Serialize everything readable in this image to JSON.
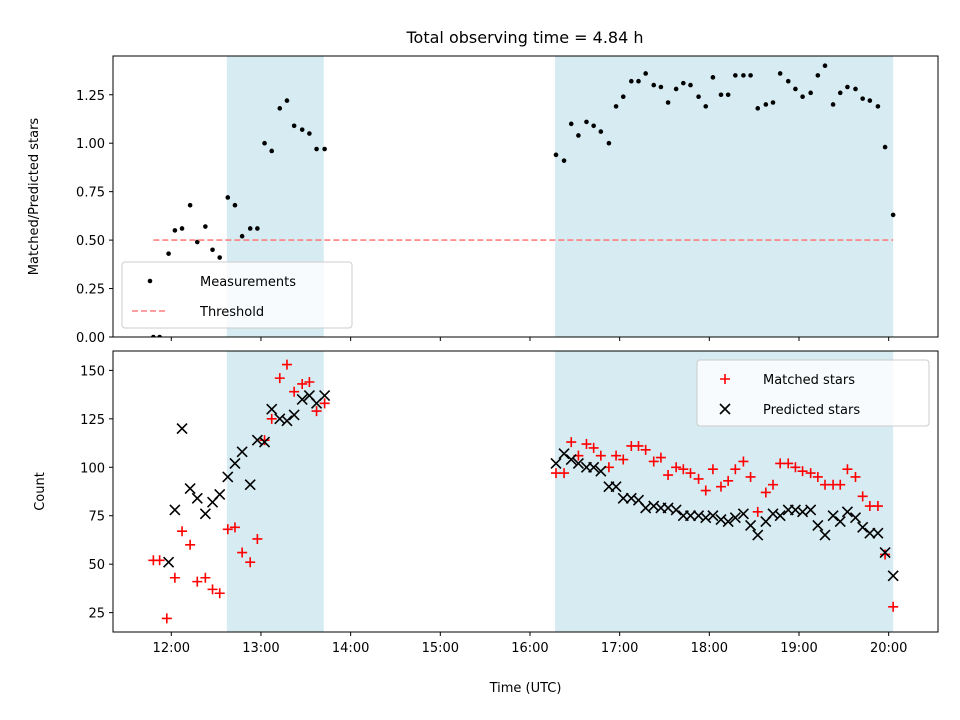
{
  "figure_title": "Total observing time = 4.84 h",
  "chart_data": [
    {
      "type": "scatter",
      "panel": "top",
      "ylabel": "Matched/Predicted stars",
      "xlabel": "",
      "xlim": [
        11.35,
        20.55
      ],
      "ylim": [
        0,
        1.45
      ],
      "xticks": [
        12,
        13,
        14,
        15,
        16,
        17,
        18,
        19,
        20
      ],
      "xtick_labels": [],
      "yticks": [
        0.0,
        0.25,
        0.5,
        0.75,
        1.0,
        1.25
      ],
      "ytick_labels": [
        "0.00",
        "0.25",
        "0.50",
        "0.75",
        "1.00",
        "1.25"
      ],
      "grid": false,
      "legend_position": "lower-left",
      "shaded_regions": [
        [
          12.62,
          13.7
        ],
        [
          16.28,
          20.05
        ]
      ],
      "series": [
        {
          "name": "Measurements",
          "marker": "dot",
          "color": "#000000",
          "points": [
            [
              11.8,
              0.0
            ],
            [
              11.87,
              0.0
            ],
            [
              11.97,
              0.43
            ],
            [
              12.04,
              0.55
            ],
            [
              12.12,
              0.56
            ],
            [
              12.21,
              0.68
            ],
            [
              12.29,
              0.49
            ],
            [
              12.38,
              0.57
            ],
            [
              12.46,
              0.45
            ],
            [
              12.54,
              0.41
            ],
            [
              12.63,
              0.72
            ],
            [
              12.71,
              0.68
            ],
            [
              12.79,
              0.52
            ],
            [
              12.88,
              0.56
            ],
            [
              12.96,
              0.56
            ],
            [
              13.04,
              1.0
            ],
            [
              13.12,
              0.96
            ],
            [
              13.21,
              1.18
            ],
            [
              13.29,
              1.22
            ],
            [
              13.37,
              1.09
            ],
            [
              13.46,
              1.07
            ],
            [
              13.54,
              1.05
            ],
            [
              13.62,
              0.97
            ],
            [
              13.71,
              0.97
            ],
            [
              16.29,
              0.94
            ],
            [
              16.38,
              0.91
            ],
            [
              16.46,
              1.1
            ],
            [
              16.54,
              1.04
            ],
            [
              16.63,
              1.11
            ],
            [
              16.71,
              1.09
            ],
            [
              16.79,
              1.06
            ],
            [
              16.88,
              1.0
            ],
            [
              16.96,
              1.19
            ],
            [
              17.04,
              1.24
            ],
            [
              17.13,
              1.32
            ],
            [
              17.21,
              1.32
            ],
            [
              17.29,
              1.36
            ],
            [
              17.38,
              1.3
            ],
            [
              17.46,
              1.29
            ],
            [
              17.54,
              1.21
            ],
            [
              17.63,
              1.28
            ],
            [
              17.71,
              1.31
            ],
            [
              17.79,
              1.3
            ],
            [
              17.88,
              1.24
            ],
            [
              17.96,
              1.19
            ],
            [
              18.04,
              1.34
            ],
            [
              18.13,
              1.25
            ],
            [
              18.21,
              1.25
            ],
            [
              18.29,
              1.35
            ],
            [
              18.38,
              1.35
            ],
            [
              18.46,
              1.35
            ],
            [
              18.54,
              1.18
            ],
            [
              18.63,
              1.2
            ],
            [
              18.71,
              1.21
            ],
            [
              18.79,
              1.36
            ],
            [
              18.88,
              1.32
            ],
            [
              18.96,
              1.28
            ],
            [
              19.04,
              1.24
            ],
            [
              19.13,
              1.26
            ],
            [
              19.21,
              1.35
            ],
            [
              19.29,
              1.4
            ],
            [
              19.38,
              1.2
            ],
            [
              19.46,
              1.26
            ],
            [
              19.54,
              1.29
            ],
            [
              19.63,
              1.28
            ],
            [
              19.71,
              1.23
            ],
            [
              19.79,
              1.22
            ],
            [
              19.88,
              1.19
            ],
            [
              19.96,
              0.98
            ],
            [
              20.05,
              0.63
            ]
          ]
        },
        {
          "name": "Threshold",
          "line": "dashed",
          "color": "#ff7f7f",
          "x": [
            11.8,
            20.05
          ],
          "values": [
            0.5,
            0.5
          ]
        }
      ]
    },
    {
      "type": "scatter",
      "panel": "bottom",
      "ylabel": "Count",
      "xlabel": "Time (UTC)",
      "xlim": [
        11.35,
        20.55
      ],
      "ylim": [
        15,
        160
      ],
      "xticks": [
        12,
        13,
        14,
        15,
        16,
        17,
        18,
        19,
        20
      ],
      "xtick_labels": [
        "12:00",
        "13:00",
        "14:00",
        "15:00",
        "16:00",
        "17:00",
        "18:00",
        "19:00",
        "20:00"
      ],
      "yticks": [
        25,
        50,
        75,
        100,
        125,
        150
      ],
      "ytick_labels": [
        "25",
        "50",
        "75",
        "100",
        "125",
        "150"
      ],
      "grid": false,
      "legend_position": "upper-right",
      "shaded_regions": [
        [
          12.62,
          13.7
        ],
        [
          16.28,
          20.05
        ]
      ],
      "series": [
        {
          "name": "Matched stars",
          "marker": "plus",
          "color": "#ff0000",
          "points": [
            [
              11.8,
              52
            ],
            [
              11.87,
              52
            ],
            [
              11.95,
              22
            ],
            [
              12.04,
              43
            ],
            [
              12.12,
              67
            ],
            [
              12.21,
              60
            ],
            [
              12.29,
              41
            ],
            [
              12.38,
              43
            ],
            [
              12.46,
              37
            ],
            [
              12.54,
              35
            ],
            [
              12.63,
              68
            ],
            [
              12.71,
              69
            ],
            [
              12.79,
              56
            ],
            [
              12.88,
              51
            ],
            [
              12.96,
              63
            ],
            [
              13.04,
              114
            ],
            [
              13.12,
              125
            ],
            [
              13.21,
              146
            ],
            [
              13.29,
              153
            ],
            [
              13.37,
              139
            ],
            [
              13.46,
              143
            ],
            [
              13.54,
              144
            ],
            [
              13.62,
              129
            ],
            [
              13.71,
              133
            ],
            [
              16.29,
              97
            ],
            [
              16.38,
              97
            ],
            [
              16.46,
              113
            ],
            [
              16.54,
              106
            ],
            [
              16.63,
              112
            ],
            [
              16.71,
              110
            ],
            [
              16.79,
              106
            ],
            [
              16.88,
              100
            ],
            [
              16.96,
              106
            ],
            [
              17.04,
              104
            ],
            [
              17.13,
              111
            ],
            [
              17.21,
              111
            ],
            [
              17.29,
              109
            ],
            [
              17.38,
              103
            ],
            [
              17.46,
              105
            ],
            [
              17.54,
              96
            ],
            [
              17.63,
              100
            ],
            [
              17.71,
              99
            ],
            [
              17.79,
              97
            ],
            [
              17.88,
              94
            ],
            [
              17.96,
              88
            ],
            [
              18.04,
              99
            ],
            [
              18.13,
              90
            ],
            [
              18.21,
              93
            ],
            [
              18.29,
              99
            ],
            [
              18.38,
              103
            ],
            [
              18.46,
              95
            ],
            [
              18.54,
              77
            ],
            [
              18.63,
              87
            ],
            [
              18.71,
              91
            ],
            [
              18.79,
              102
            ],
            [
              18.88,
              102
            ],
            [
              18.96,
              100
            ],
            [
              19.04,
              98
            ],
            [
              19.13,
              97
            ],
            [
              19.21,
              95
            ],
            [
              19.29,
              91
            ],
            [
              19.38,
              91
            ],
            [
              19.46,
              91
            ],
            [
              19.54,
              99
            ],
            [
              19.63,
              95
            ],
            [
              19.71,
              85
            ],
            [
              19.79,
              80
            ],
            [
              19.88,
              80
            ],
            [
              19.96,
              55
            ],
            [
              20.05,
              28
            ]
          ]
        },
        {
          "name": "Predicted stars",
          "marker": "x",
          "color": "#000000",
          "points": [
            [
              11.97,
              51
            ],
            [
              12.04,
              78
            ],
            [
              12.12,
              120
            ],
            [
              12.21,
              89
            ],
            [
              12.29,
              84
            ],
            [
              12.38,
              76
            ],
            [
              12.46,
              82
            ],
            [
              12.54,
              86
            ],
            [
              12.63,
              95
            ],
            [
              12.71,
              102
            ],
            [
              12.79,
              108
            ],
            [
              12.88,
              91
            ],
            [
              12.96,
              114
            ],
            [
              13.04,
              113
            ],
            [
              13.12,
              130
            ],
            [
              13.21,
              125
            ],
            [
              13.29,
              124
            ],
            [
              13.37,
              127
            ],
            [
              13.46,
              135
            ],
            [
              13.54,
              137
            ],
            [
              13.62,
              133
            ],
            [
              13.71,
              137
            ],
            [
              16.29,
              102
            ],
            [
              16.38,
              107
            ],
            [
              16.46,
              104
            ],
            [
              16.54,
              102
            ],
            [
              16.63,
              100
            ],
            [
              16.71,
              100
            ],
            [
              16.79,
              98
            ],
            [
              16.88,
              90
            ],
            [
              16.96,
              90
            ],
            [
              17.04,
              84
            ],
            [
              17.13,
              84
            ],
            [
              17.21,
              83
            ],
            [
              17.29,
              79
            ],
            [
              17.38,
              80
            ],
            [
              17.46,
              79
            ],
            [
              17.54,
              79
            ],
            [
              17.63,
              78
            ],
            [
              17.71,
              75
            ],
            [
              17.79,
              75
            ],
            [
              17.88,
              75
            ],
            [
              17.96,
              74
            ],
            [
              18.04,
              75
            ],
            [
              18.13,
              73
            ],
            [
              18.21,
              72
            ],
            [
              18.29,
              74
            ],
            [
              18.38,
              76
            ],
            [
              18.46,
              70
            ],
            [
              18.54,
              65
            ],
            [
              18.63,
              72
            ],
            [
              18.71,
              76
            ],
            [
              18.79,
              75
            ],
            [
              18.88,
              78
            ],
            [
              18.96,
              78
            ],
            [
              19.04,
              77
            ],
            [
              19.13,
              78
            ],
            [
              19.21,
              70
            ],
            [
              19.29,
              65
            ],
            [
              19.38,
              75
            ],
            [
              19.46,
              72
            ],
            [
              19.54,
              77
            ],
            [
              19.63,
              74
            ],
            [
              19.71,
              69
            ],
            [
              19.79,
              66
            ],
            [
              19.88,
              66
            ],
            [
              19.96,
              56
            ],
            [
              20.05,
              44
            ]
          ]
        }
      ]
    }
  ],
  "colors": {
    "shade": "#add8e6",
    "matched": "#ff0000",
    "predicted": "#000000",
    "threshold": "#ff7f7f"
  }
}
